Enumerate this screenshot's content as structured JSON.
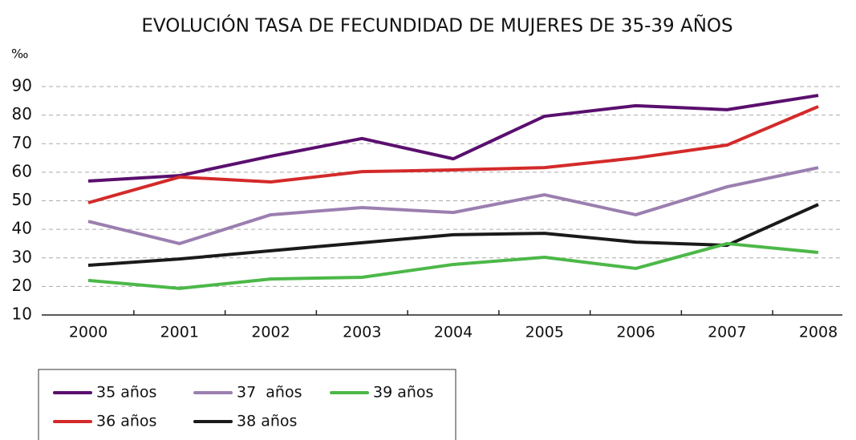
{
  "chart_data": {
    "type": "line",
    "title": "EVOLUCIÓN TASA DE FECUNDIDAD DE MUJERES DE 35-39 AÑOS",
    "y_label": "‰",
    "categories": [
      "2000",
      "2001",
      "2002",
      "2003",
      "2004",
      "2005",
      "2006",
      "2007",
      "2008"
    ],
    "series": [
      {
        "name": "35 años",
        "color": "#5a0f6e",
        "values": [
          56.9,
          58.8,
          65.6,
          71.8,
          64.7,
          79.6,
          83.3,
          81.9,
          86.9
        ]
      },
      {
        "name": "36 años",
        "color": "#d42a2a",
        "values": [
          49.3,
          58.3,
          56.6,
          60.2,
          60.8,
          61.6,
          65,
          69.5,
          83
        ]
      },
      {
        "name": "37  años",
        "color": "#9b7fb0",
        "values": [
          42.8,
          35,
          45.1,
          47.6,
          45.9,
          52.1,
          45.1,
          54.9,
          61.6
        ]
      },
      {
        "name": "38 años",
        "color": "#1a1a1a",
        "values": [
          27.4,
          29.6,
          32.5,
          35.3,
          38.1,
          38.6,
          35.5,
          34.4,
          48.7
        ]
      },
      {
        "name": "39 años",
        "color": "#4cb848",
        "values": [
          22.1,
          19.3,
          22.6,
          23.2,
          27.7,
          30.2,
          26.3,
          35,
          31.9
        ]
      }
    ],
    "ylim": [
      10,
      90
    ],
    "yticks": [
      10,
      20,
      30,
      40,
      50,
      60,
      70,
      80,
      90
    ],
    "grid": true
  }
}
